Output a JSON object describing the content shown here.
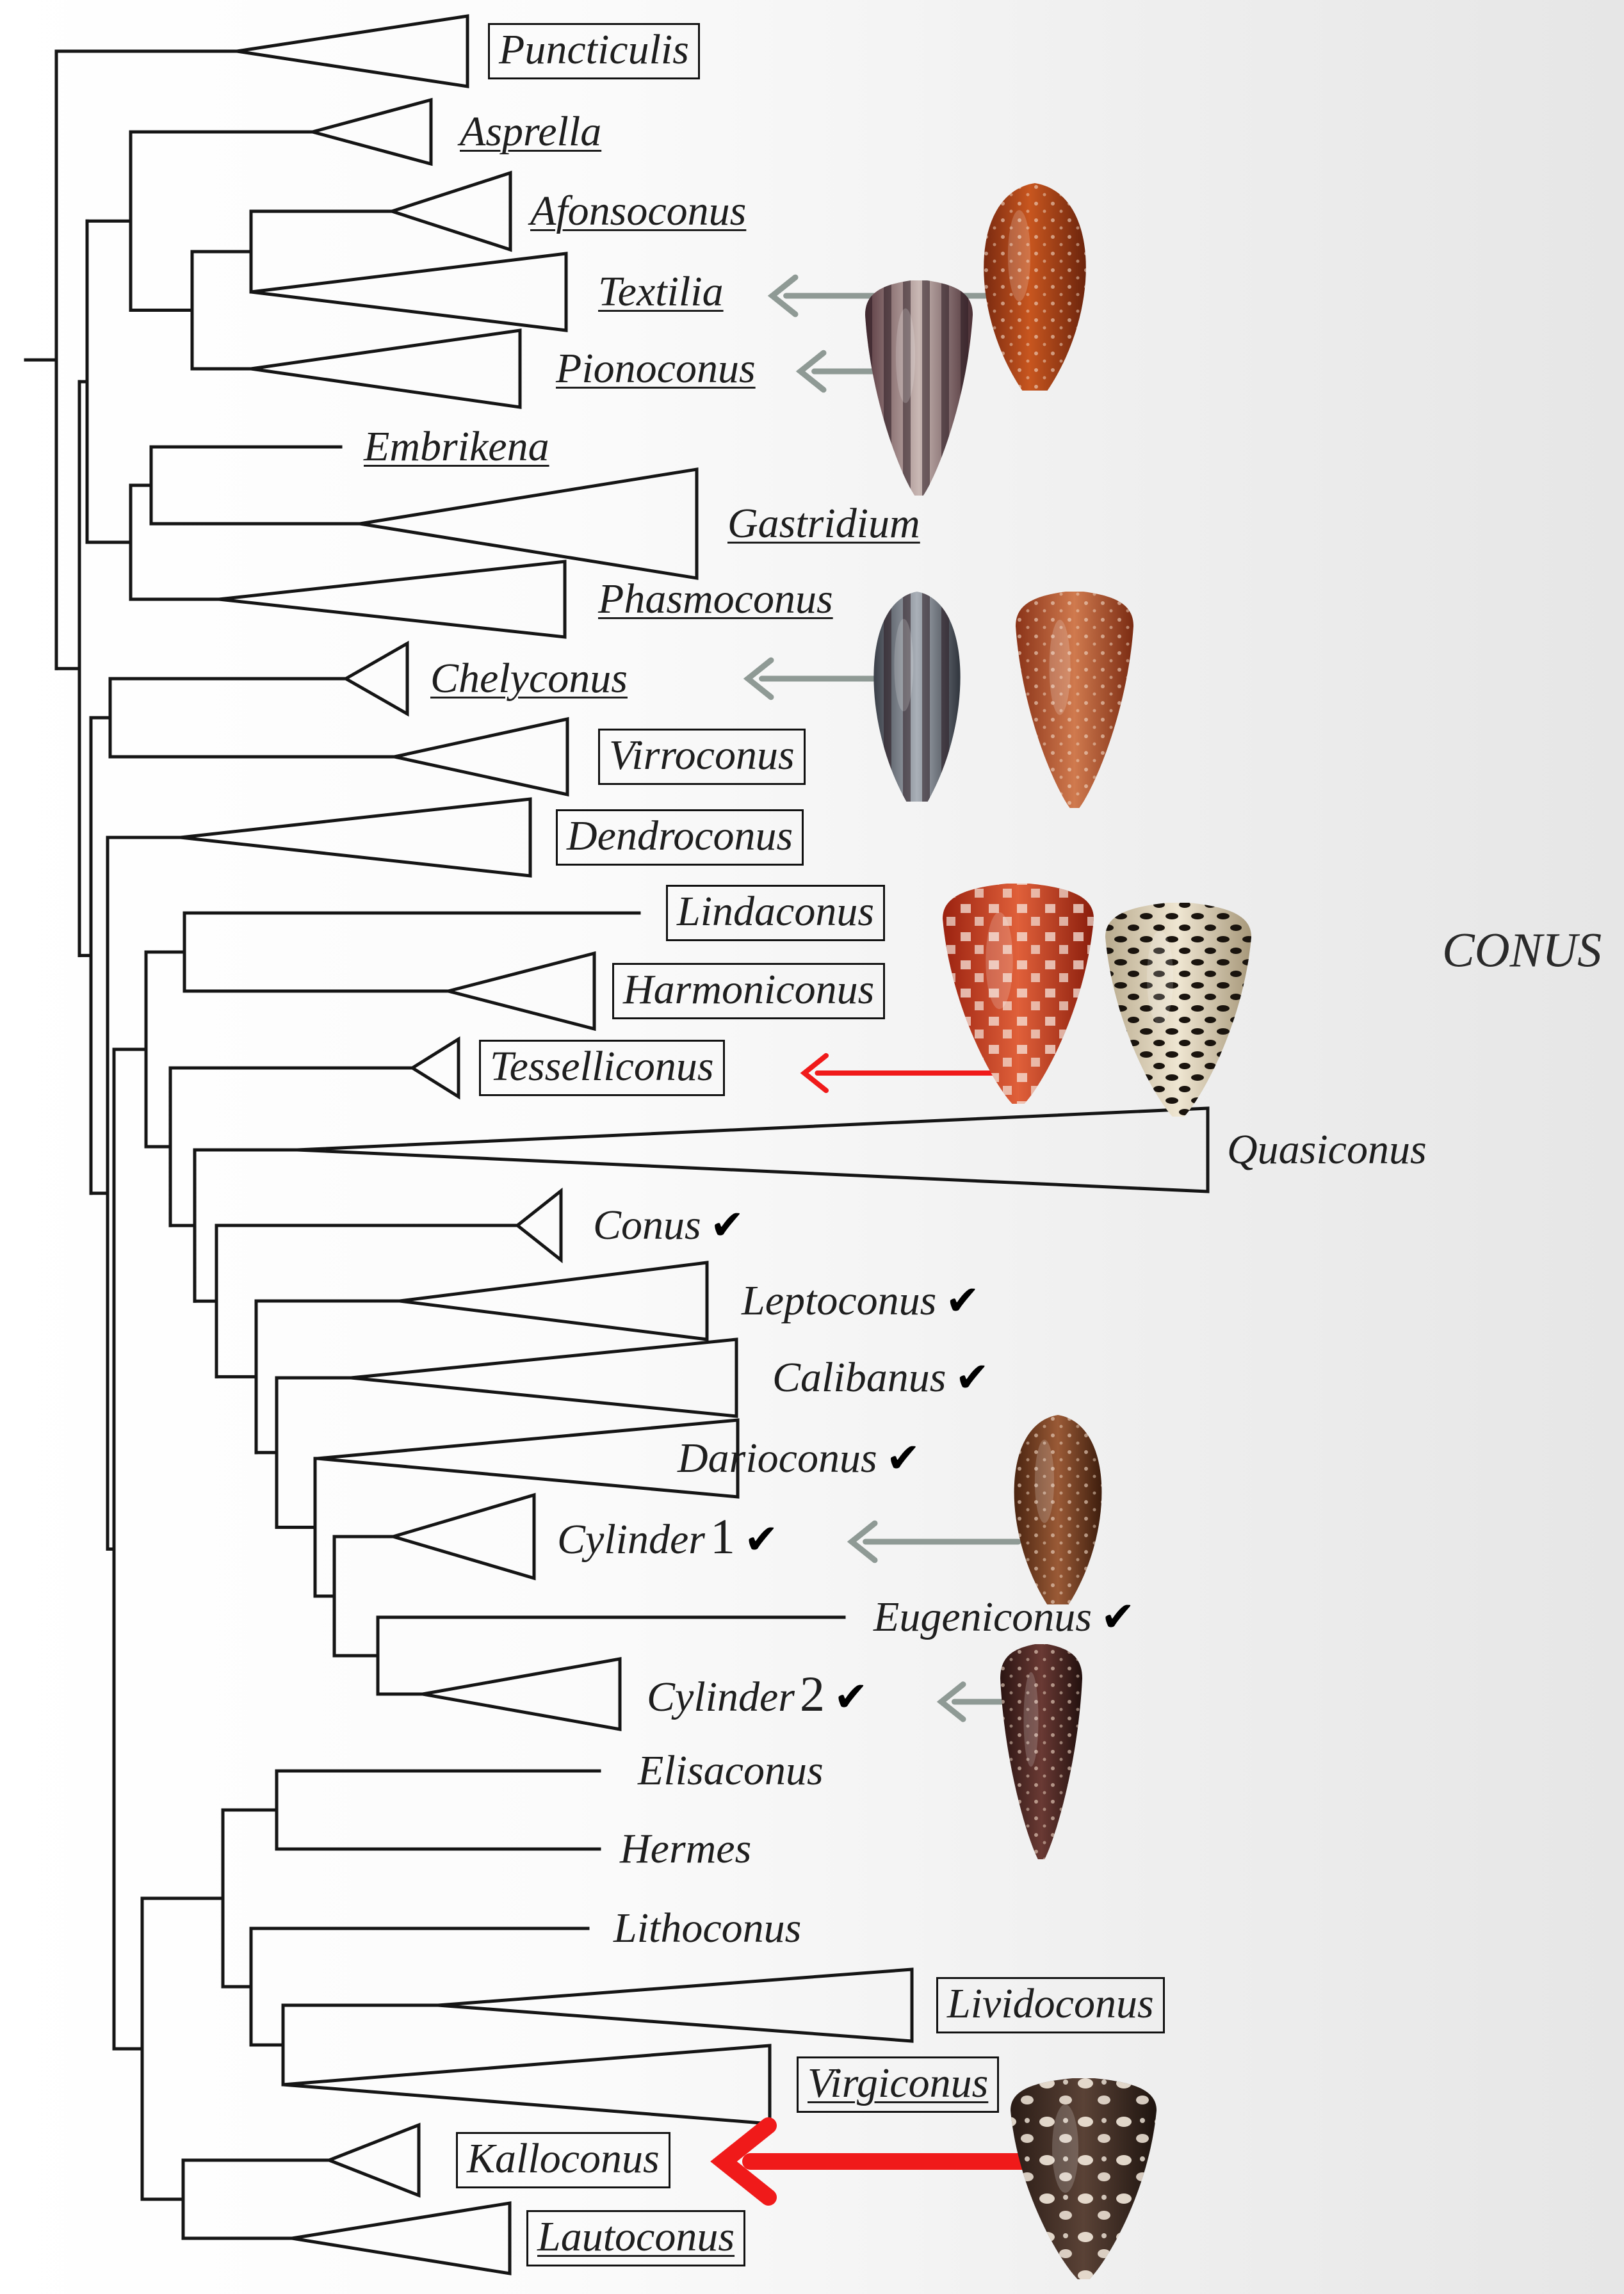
{
  "clade_label": "CONUS",
  "taxa": [
    {
      "name": "Puncticulis",
      "box": true,
      "underline": false
    },
    {
      "name": "Asprella",
      "box": false,
      "underline": true
    },
    {
      "name": "Afonsoconus",
      "box": false,
      "underline": true
    },
    {
      "name": "Textilia",
      "box": false,
      "underline": true
    },
    {
      "name": "Pionoconus",
      "box": false,
      "underline": true
    },
    {
      "name": "Embrikena",
      "box": false,
      "underline": true
    },
    {
      "name": "Gastridium",
      "box": false,
      "underline": true
    },
    {
      "name": "Phasmoconus",
      "box": false,
      "underline": true
    },
    {
      "name": "Chelyconus",
      "box": false,
      "underline": true
    },
    {
      "name": "Virroconus",
      "box": true,
      "underline": false
    },
    {
      "name": "Dendroconus",
      "box": true,
      "underline": false
    },
    {
      "name": "Lindaconus",
      "box": true,
      "underline": false
    },
    {
      "name": "Harmoniconus",
      "box": true,
      "underline": false
    },
    {
      "name": "Tesselliconus",
      "box": true,
      "underline": false
    },
    {
      "name": "Quasiconus",
      "box": false,
      "underline": false
    },
    {
      "name": "Conus",
      "box": false,
      "underline": false,
      "check": "✔"
    },
    {
      "name": "Leptoconus",
      "box": false,
      "underline": false,
      "check": "✔"
    },
    {
      "name": "Calibanus",
      "box": false,
      "underline": false,
      "check": "✔"
    },
    {
      "name": "Darioconus",
      "box": false,
      "underline": false,
      "check": "✔"
    },
    {
      "name": "Cylinder",
      "number": "1",
      "box": false,
      "underline": false,
      "check": "✔"
    },
    {
      "name": "Eugeniconus",
      "box": false,
      "underline": false,
      "check": "✔"
    },
    {
      "name": "Cylinder",
      "number": "2",
      "box": false,
      "underline": false,
      "check": "✔"
    },
    {
      "name": "Elisaconus",
      "box": false,
      "underline": false
    },
    {
      "name": "Hermes",
      "box": false,
      "underline": false
    },
    {
      "name": "Lithoconus",
      "box": false,
      "underline": false
    },
    {
      "name": "Lividoconus",
      "box": true,
      "underline": false
    },
    {
      "name": "Virgiconus",
      "box": true,
      "underline": true
    },
    {
      "name": "Kalloconus",
      "box": true,
      "underline": false
    },
    {
      "name": "Lautoconus",
      "box": true,
      "underline": true
    }
  ],
  "colors": {
    "branch": "#151515",
    "arrow_gray": "#8f9a95",
    "arrow_red": "#f01a1a"
  },
  "shell_images": [
    {
      "icon": "cone-shell-orange-banded",
      "points_to": "Textilia"
    },
    {
      "icon": "cone-shell-purple-striped",
      "points_to": "Pionoconus"
    },
    {
      "icon": "cone-shell-gray-striped",
      "points_to": "Chelyconus"
    },
    {
      "icon": "cone-shell-rust-mottled",
      "points_to": "Chelyconus"
    },
    {
      "icon": "cone-shell-red-tessellated",
      "points_to": "Tesselliconus"
    },
    {
      "icon": "cone-shell-leopard",
      "points_to": "Tesselliconus"
    },
    {
      "icon": "cone-shell-brown-tented",
      "points_to": "Cylinder 1"
    },
    {
      "icon": "cone-shell-dark-slender",
      "points_to": "Cylinder 2"
    },
    {
      "icon": "cone-shell-black-white-blotched",
      "points_to": "Kalloconus"
    }
  ]
}
